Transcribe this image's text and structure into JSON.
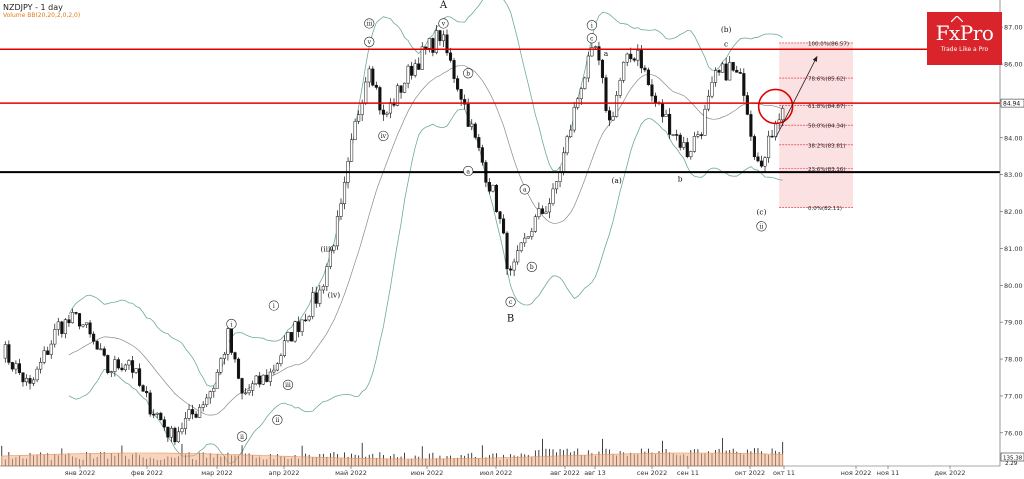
{
  "header": {
    "symbol_timeframe": "NZDJPY - 1 day",
    "indicator_label": "Volume BB(20,20,2,0,2,0)"
  },
  "brand": {
    "name": "FxPro",
    "tagline": "Trade Like a Pro",
    "color": "#d8242a"
  },
  "chart_data": {
    "type": "candlestick",
    "title": "NZDJPY - 1 day",
    "price_axis": {
      "ticks": [
        76.0,
        77.0,
        78.0,
        79.0,
        80.0,
        81.0,
        82.0,
        83.0,
        84.0,
        85.0,
        86.0,
        87.0
      ],
      "ylim": [
        75.1,
        87.6
      ]
    },
    "time_axis": {
      "labels": [
        "янв 2022",
        "фев 2022",
        "мар 2022",
        "апр 2022",
        "май 2022",
        "июн 2022",
        "июл 2022",
        "авг 2022",
        "авг 13",
        "сен 2022",
        "сен 11",
        "окт 2022",
        "окт 11",
        "ноя 2022",
        "ноя 11",
        "дек 2022"
      ]
    },
    "price_labels": {
      "current": "84.94",
      "volume": "135.38",
      "volume_level": "2.29"
    },
    "horizontal_lines": [
      {
        "price": 86.4,
        "color": "#e00000"
      },
      {
        "price": 84.94,
        "color": "#e00000"
      },
      {
        "price": 83.07,
        "color": "#000000"
      }
    ],
    "fibonacci": {
      "levels": [
        {
          "label": "100.0%(86.57)",
          "price": 86.57
        },
        {
          "label": "78.6%(85.62)",
          "price": 85.62
        },
        {
          "label": "61.8%(84.87)",
          "price": 84.87
        },
        {
          "label": "50.0%(84.34)",
          "price": 84.34
        },
        {
          "label": "38.2%(83.81)",
          "price": 83.81
        },
        {
          "label": "23.6%(83.16)",
          "price": 83.16
        },
        {
          "label": "0.0%(82.11)",
          "price": 82.11
        }
      ],
      "fill_color": "#fbd9dc"
    },
    "wave_labels": [
      {
        "text": "iii",
        "circled": true,
        "date_index": 104,
        "price": 87.1
      },
      {
        "text": "v",
        "circled": true,
        "date_index": 104,
        "price": 86.6
      },
      {
        "text": "iv",
        "circled": true,
        "date_index": 108,
        "price": 84.05
      },
      {
        "text": "A",
        "circled": false,
        "date_index": 125,
        "price": 87.6
      },
      {
        "text": "v",
        "circled": true,
        "date_index": 125,
        "price": 87.1
      },
      {
        "text": "b",
        "circled": true,
        "date_index": 132,
        "price": 85.75
      },
      {
        "text": "a",
        "circled": true,
        "date_index": 132,
        "price": 83.1
      },
      {
        "text": "a",
        "circled": true,
        "date_index": 148,
        "price": 82.6
      },
      {
        "text": "b",
        "circled": true,
        "date_index": 150,
        "price": 80.5
      },
      {
        "text": "c",
        "circled": true,
        "date_index": 144,
        "price": 79.55
      },
      {
        "text": "B",
        "circled": false,
        "date_index": 144,
        "price": 79.1
      },
      {
        "text": "i",
        "circled": true,
        "date_index": 167,
        "price": 87.05
      },
      {
        "text": "c",
        "circled": true,
        "date_index": 167,
        "price": 86.7
      },
      {
        "text": "a",
        "circled": false,
        "date_index": 171,
        "price": 86.3
      },
      {
        "text": "(a)",
        "circled": false,
        "date_index": 174,
        "price": 82.85
      },
      {
        "text": "b",
        "circled": false,
        "date_index": 192,
        "price": 82.9
      },
      {
        "text": "(b)",
        "circled": false,
        "date_index": 205,
        "price": 86.95
      },
      {
        "text": "c",
        "circled": false,
        "date_index": 205,
        "price": 86.55
      },
      {
        "text": "(c)",
        "circled": false,
        "date_index": 215,
        "price": 82.0
      },
      {
        "text": "ii",
        "circled": true,
        "date_index": 215,
        "price": 81.6
      },
      {
        "text": "(iii)",
        "circled": false,
        "date_index": 92,
        "price": 81.0
      },
      {
        "text": "(iv)",
        "circled": false,
        "date_index": 94,
        "price": 79.75
      },
      {
        "text": "i",
        "circled": true,
        "date_index": 77,
        "price": 79.45
      },
      {
        "text": "ii",
        "circled": true,
        "date_index": 78,
        "price": 76.35
      },
      {
        "text": "iii",
        "circled": true,
        "date_index": 81,
        "price": 77.3
      },
      {
        "text": "i",
        "circled": true,
        "date_index": 65,
        "price": 78.95
      },
      {
        "text": "ii",
        "circled": true,
        "date_index": 68,
        "price": 75.9
      }
    ],
    "forecast_arrow": {
      "from": {
        "date_index": 219,
        "price": 84.0
      },
      "to": {
        "date_index": 229,
        "price": 86.2
      }
    },
    "highlight_circle": {
      "date_index": 219,
      "price": 84.85
    },
    "ohlc_anchors": [
      [
        0,
        78.3
      ],
      [
        8,
        77.2
      ],
      [
        16,
        78.9
      ],
      [
        22,
        79.1
      ],
      [
        30,
        77.7
      ],
      [
        36,
        78.0
      ],
      [
        40,
        77.0
      ],
      [
        44,
        76.5
      ],
      [
        48,
        75.9
      ],
      [
        55,
        76.6
      ],
      [
        60,
        77.3
      ],
      [
        64,
        78.6
      ],
      [
        68,
        77.0
      ],
      [
        76,
        77.6
      ],
      [
        82,
        78.7
      ],
      [
        90,
        79.8
      ],
      [
        96,
        82.0
      ],
      [
        100,
        84.3
      ],
      [
        104,
        86.1
      ],
      [
        108,
        84.5
      ],
      [
        116,
        85.9
      ],
      [
        124,
        86.8
      ],
      [
        130,
        85.2
      ],
      [
        134,
        83.9
      ],
      [
        140,
        82.2
      ],
      [
        144,
        80.2
      ],
      [
        150,
        81.6
      ],
      [
        156,
        82.4
      ],
      [
        160,
        83.9
      ],
      [
        164,
        85.5
      ],
      [
        168,
        86.4
      ],
      [
        172,
        84.4
      ],
      [
        176,
        85.9
      ],
      [
        180,
        86.4
      ],
      [
        184,
        85.1
      ],
      [
        190,
        84.2
      ],
      [
        194,
        83.6
      ],
      [
        198,
        84.3
      ],
      [
        202,
        85.6
      ],
      [
        206,
        85.9
      ],
      [
        210,
        85.4
      ],
      [
        213,
        83.7
      ],
      [
        216,
        83.4
      ],
      [
        219,
        84.6
      ],
      [
        221,
        84.7
      ]
    ],
    "volume_bars": "shown",
    "bollinger_bands": "shown",
    "grid": false
  }
}
